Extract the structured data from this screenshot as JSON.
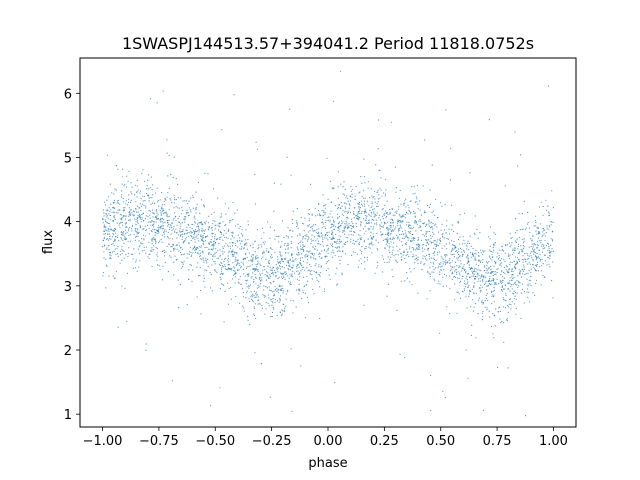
{
  "chart_data": {
    "type": "scatter",
    "title": "1SWASPJ144513.57+394041.2 Period 11818.0752s",
    "xlabel": "phase",
    "ylabel": "flux",
    "xlim": [
      -1.1,
      1.1
    ],
    "ylim": [
      0.8,
      6.55
    ],
    "x_ticks": [
      -1.0,
      -0.75,
      -0.5,
      -0.25,
      0.0,
      0.25,
      0.5,
      0.75,
      1.0
    ],
    "x_tick_labels": [
      "−1.00",
      "−0.75",
      "−0.50",
      "−0.25",
      "0.00",
      "0.25",
      "0.50",
      "0.75",
      "1.00"
    ],
    "y_ticks": [
      1,
      2,
      3,
      4,
      5,
      6
    ],
    "y_tick_labels": [
      "1",
      "2",
      "3",
      "4",
      "5",
      "6"
    ],
    "grid": false,
    "marker_color": "#1f77b4",
    "series": [
      {
        "x": [
          -1.0,
          -0.9,
          -0.8,
          -0.7,
          -0.6,
          -0.5,
          -0.4,
          -0.3,
          -0.2,
          -0.1,
          0.0,
          0.1,
          0.2,
          0.3,
          0.4,
          0.5,
          0.6,
          0.7,
          0.8,
          0.9,
          1.0
        ],
        "y": [
          3.8,
          3.95,
          4.0,
          3.95,
          3.8,
          3.6,
          3.35,
          3.15,
          3.2,
          3.5,
          3.8,
          3.95,
          4.0,
          3.9,
          3.75,
          3.55,
          3.3,
          3.1,
          3.15,
          3.45,
          3.8
        ]
      }
    ]
  }
}
